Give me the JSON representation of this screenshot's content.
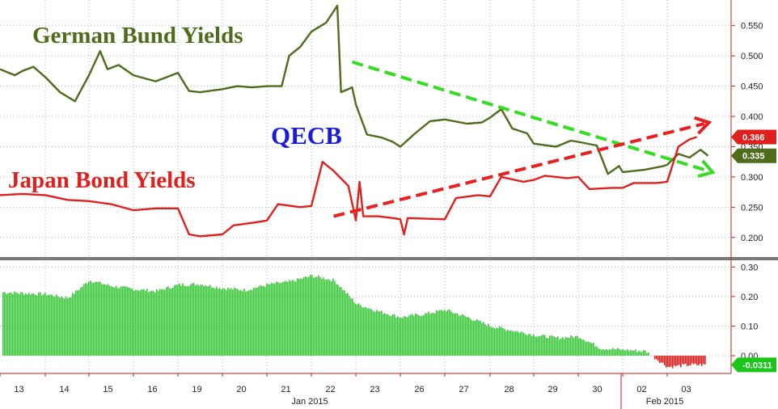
{
  "annotations": {
    "german": "German Bund Yields",
    "japan": "Japan Bond Yields",
    "qecb": "QECB"
  },
  "colors": {
    "german": "#4f6b1c",
    "japan": "#e0201c",
    "qecb": "#1a1adc",
    "spread": "#3cc83c",
    "spread_negative": "#e0201c",
    "axis": "#c81e1e",
    "grid": "#b4b4b4",
    "trend_german": "#33dd22",
    "trend_japan": "#e82020"
  },
  "chart_data": [
    {
      "type": "line",
      "title": "",
      "xlabel": "",
      "ylabel": "",
      "ylim": [
        0.18,
        0.585
      ],
      "yticks": [
        "0.200",
        "0.250",
        "0.300",
        "0.350",
        "0.400",
        "0.450",
        "0.500",
        "0.550"
      ],
      "grid": true,
      "x": [
        "2015-01-13",
        "2015-01-14",
        "2015-01-15",
        "2015-01-16",
        "2015-01-19",
        "2015-01-20",
        "2015-01-21",
        "2015-01-22",
        "2015-01-23",
        "2015-01-26",
        "2015-01-27",
        "2015-01-28",
        "2015-01-29",
        "2015-01-30",
        "2015-02-02",
        "2015-02-03"
      ],
      "series": [
        {
          "name": "German Bund Yields",
          "last_label": "0.335",
          "points": [
            [
              "2015-01-13 00:00",
              0.478
            ],
            [
              "2015-01-13 08:00",
              0.468
            ],
            [
              "2015-01-13 12:00",
              0.475
            ],
            [
              "2015-01-13 18:00",
              0.482
            ],
            [
              "2015-01-14 00:00",
              0.465
            ],
            [
              "2015-01-14 08:00",
              0.44
            ],
            [
              "2015-01-14 16:00",
              0.425
            ],
            [
              "2015-01-15 00:00",
              0.468
            ],
            [
              "2015-01-15 06:00",
              0.508
            ],
            [
              "2015-01-15 10:00",
              0.478
            ],
            [
              "2015-01-15 16:00",
              0.485
            ],
            [
              "2015-01-16 00:00",
              0.468
            ],
            [
              "2015-01-16 12:00",
              0.458
            ],
            [
              "2015-01-16 18:00",
              0.465
            ],
            [
              "2015-01-19 00:00",
              0.472
            ],
            [
              "2015-01-19 06:00",
              0.442
            ],
            [
              "2015-01-19 12:00",
              0.44
            ],
            [
              "2015-01-20 00:00",
              0.445
            ],
            [
              "2015-01-20 08:00",
              0.45
            ],
            [
              "2015-01-20 16:00",
              0.448
            ],
            [
              "2015-01-21 00:00",
              0.45
            ],
            [
              "2015-01-21 08:00",
              0.45
            ],
            [
              "2015-01-21 12:00",
              0.5
            ],
            [
              "2015-01-21 18:00",
              0.515
            ],
            [
              "2015-01-22 00:00",
              0.54
            ],
            [
              "2015-01-22 08:00",
              0.555
            ],
            [
              "2015-01-22 14:00",
              0.583
            ],
            [
              "2015-01-22 16:00",
              0.44
            ],
            [
              "2015-01-22 22:00",
              0.448
            ],
            [
              "2015-01-23 00:00",
              0.42
            ],
            [
              "2015-01-23 06:00",
              0.37
            ],
            [
              "2015-01-23 14:00",
              0.365
            ],
            [
              "2015-01-23 20:00",
              0.358
            ],
            [
              "2015-01-26 00:00",
              0.35
            ],
            [
              "2015-01-26 08:00",
              0.372
            ],
            [
              "2015-01-26 16:00",
              0.392
            ],
            [
              "2015-01-27 00:00",
              0.395
            ],
            [
              "2015-01-27 12:00",
              0.388
            ],
            [
              "2015-01-27 20:00",
              0.39
            ],
            [
              "2015-01-28 00:00",
              0.398
            ],
            [
              "2015-01-28 06:00",
              0.412
            ],
            [
              "2015-01-28 12:00",
              0.38
            ],
            [
              "2015-01-28 20:00",
              0.372
            ],
            [
              "2015-01-29 00:00",
              0.355
            ],
            [
              "2015-01-29 12:00",
              0.35
            ],
            [
              "2015-01-29 20:00",
              0.36
            ],
            [
              "2015-01-30 00:00",
              0.358
            ],
            [
              "2015-01-30 10:00",
              0.352
            ],
            [
              "2015-01-30 16:00",
              0.305
            ],
            [
              "2015-01-30 22:00",
              0.318
            ],
            [
              "2015-02-02 00:00",
              0.308
            ],
            [
              "2015-02-02 12:00",
              0.312
            ],
            [
              "2015-02-02 22:00",
              0.318
            ],
            [
              "2015-02-03 00:00",
              0.32
            ],
            [
              "2015-02-03 06:00",
              0.338
            ],
            [
              "2015-02-03 12:00",
              0.332
            ],
            [
              "2015-02-03 18:00",
              0.345
            ],
            [
              "2015-02-03 22:00",
              0.335
            ]
          ]
        },
        {
          "name": "Japan Bond Yields",
          "last_label": "0.366",
          "points": [
            [
              "2015-01-13 00:00",
              0.27
            ],
            [
              "2015-01-13 12:00",
              0.272
            ],
            [
              "2015-01-14 00:00",
              0.27
            ],
            [
              "2015-01-14 12:00",
              0.262
            ],
            [
              "2015-01-15 00:00",
              0.26
            ],
            [
              "2015-01-15 12:00",
              0.255
            ],
            [
              "2015-01-16 00:00",
              0.245
            ],
            [
              "2015-01-16 12:00",
              0.248
            ],
            [
              "2015-01-19 00:00",
              0.248
            ],
            [
              "2015-01-19 06:00",
              0.205
            ],
            [
              "2015-01-19 12:00",
              0.202
            ],
            [
              "2015-01-20 00:00",
              0.205
            ],
            [
              "2015-01-20 06:00",
              0.22
            ],
            [
              "2015-01-20 18:00",
              0.225
            ],
            [
              "2015-01-21 00:00",
              0.228
            ],
            [
              "2015-01-21 06:00",
              0.255
            ],
            [
              "2015-01-21 18:00",
              0.25
            ],
            [
              "2015-01-22 00:00",
              0.252
            ],
            [
              "2015-01-22 06:00",
              0.325
            ],
            [
              "2015-01-22 12:00",
              0.31
            ],
            [
              "2015-01-22 20:00",
              0.285
            ],
            [
              "2015-01-23 00:00",
              0.228
            ],
            [
              "2015-01-23 02:00",
              0.292
            ],
            [
              "2015-01-23 04:00",
              0.235
            ],
            [
              "2015-01-23 12:00",
              0.235
            ],
            [
              "2015-01-23 20:00",
              0.232
            ],
            [
              "2015-01-26 00:00",
              0.23
            ],
            [
              "2015-01-26 02:00",
              0.205
            ],
            [
              "2015-01-26 04:00",
              0.232
            ],
            [
              "2015-01-27 00:00",
              0.23
            ],
            [
              "2015-01-27 06:00",
              0.265
            ],
            [
              "2015-01-27 18:00",
              0.27
            ],
            [
              "2015-01-28 00:00",
              0.268
            ],
            [
              "2015-01-28 06:00",
              0.3
            ],
            [
              "2015-01-28 18:00",
              0.292
            ],
            [
              "2015-01-29 00:00",
              0.295
            ],
            [
              "2015-01-29 06:00",
              0.302
            ],
            [
              "2015-01-29 18:00",
              0.298
            ],
            [
              "2015-01-30 00:00",
              0.3
            ],
            [
              "2015-01-30 06:00",
              0.28
            ],
            [
              "2015-01-30 18:00",
              0.282
            ],
            [
              "2015-02-02 00:00",
              0.282
            ],
            [
              "2015-02-02 06:00",
              0.29
            ],
            [
              "2015-02-02 18:00",
              0.29
            ],
            [
              "2015-02-03 00:00",
              0.292
            ],
            [
              "2015-02-03 06:00",
              0.35
            ],
            [
              "2015-02-03 12:00",
              0.362
            ],
            [
              "2015-02-03 16:00",
              0.366
            ]
          ]
        }
      ],
      "trendlines": [
        {
          "series": "German Bund Yields",
          "from": [
            "2015-01-22 22:00",
            0.49
          ],
          "to": [
            "2015-02-03 22:00",
            0.31
          ]
        },
        {
          "series": "Japan Bond Yields",
          "from": [
            "2015-01-22 12:00",
            0.235
          ],
          "to": [
            "2015-02-03 20:00",
            0.388
          ]
        }
      ]
    },
    {
      "type": "bar",
      "title": "",
      "xlabel": "",
      "ylabel": "",
      "ylim": [
        -0.06,
        0.32
      ],
      "yticks": [
        "0.00",
        "0.10",
        "0.20",
        "0.30"
      ],
      "grid": true,
      "series": [
        {
          "name": "",
          "last_label": "-0.0311"
        }
      ],
      "anchors": [
        [
          "2015-01-13 00:00",
          0.215
        ],
        [
          "2015-01-14 00:00",
          0.208
        ],
        [
          "2015-01-14 12:00",
          0.195
        ],
        [
          "2015-01-15 00:00",
          0.255
        ],
        [
          "2015-01-15 12:00",
          0.235
        ],
        [
          "2015-01-16 00:00",
          0.225
        ],
        [
          "2015-01-16 12:00",
          0.218
        ],
        [
          "2015-01-19 00:00",
          0.24
        ],
        [
          "2015-01-19 12:00",
          0.242
        ],
        [
          "2015-01-20 00:00",
          0.228
        ],
        [
          "2015-01-20 12:00",
          0.222
        ],
        [
          "2015-01-21 00:00",
          0.24
        ],
        [
          "2015-01-21 12:00",
          0.25
        ],
        [
          "2015-01-22 00:00",
          0.27
        ],
        [
          "2015-01-22 12:00",
          0.255
        ],
        [
          "2015-01-23 00:00",
          0.175
        ],
        [
          "2015-01-23 12:00",
          0.15
        ],
        [
          "2015-01-26 00:00",
          0.13
        ],
        [
          "2015-01-26 12:00",
          0.14
        ],
        [
          "2015-01-27 00:00",
          0.155
        ],
        [
          "2015-01-27 12:00",
          0.13
        ],
        [
          "2015-01-28 00:00",
          0.1
        ],
        [
          "2015-01-28 12:00",
          0.085
        ],
        [
          "2015-01-29 00:00",
          0.07
        ],
        [
          "2015-01-29 12:00",
          0.06
        ],
        [
          "2015-01-30 00:00",
          0.065
        ],
        [
          "2015-01-30 12:00",
          0.025
        ],
        [
          "2015-02-02 00:00",
          0.02
        ],
        [
          "2015-02-02 12:00",
          0.015
        ],
        [
          "2015-02-03 00:00",
          -0.038
        ],
        [
          "2015-02-03 12:00",
          -0.031
        ]
      ],
      "x_ticks": [
        "13",
        "14",
        "15",
        "16",
        "19",
        "20",
        "21",
        "22",
        "23",
        "26",
        "27",
        "28",
        "29",
        "30",
        "02",
        "03"
      ],
      "x_subtitles": [
        "Jan 2015",
        "Feb 2015"
      ]
    }
  ]
}
